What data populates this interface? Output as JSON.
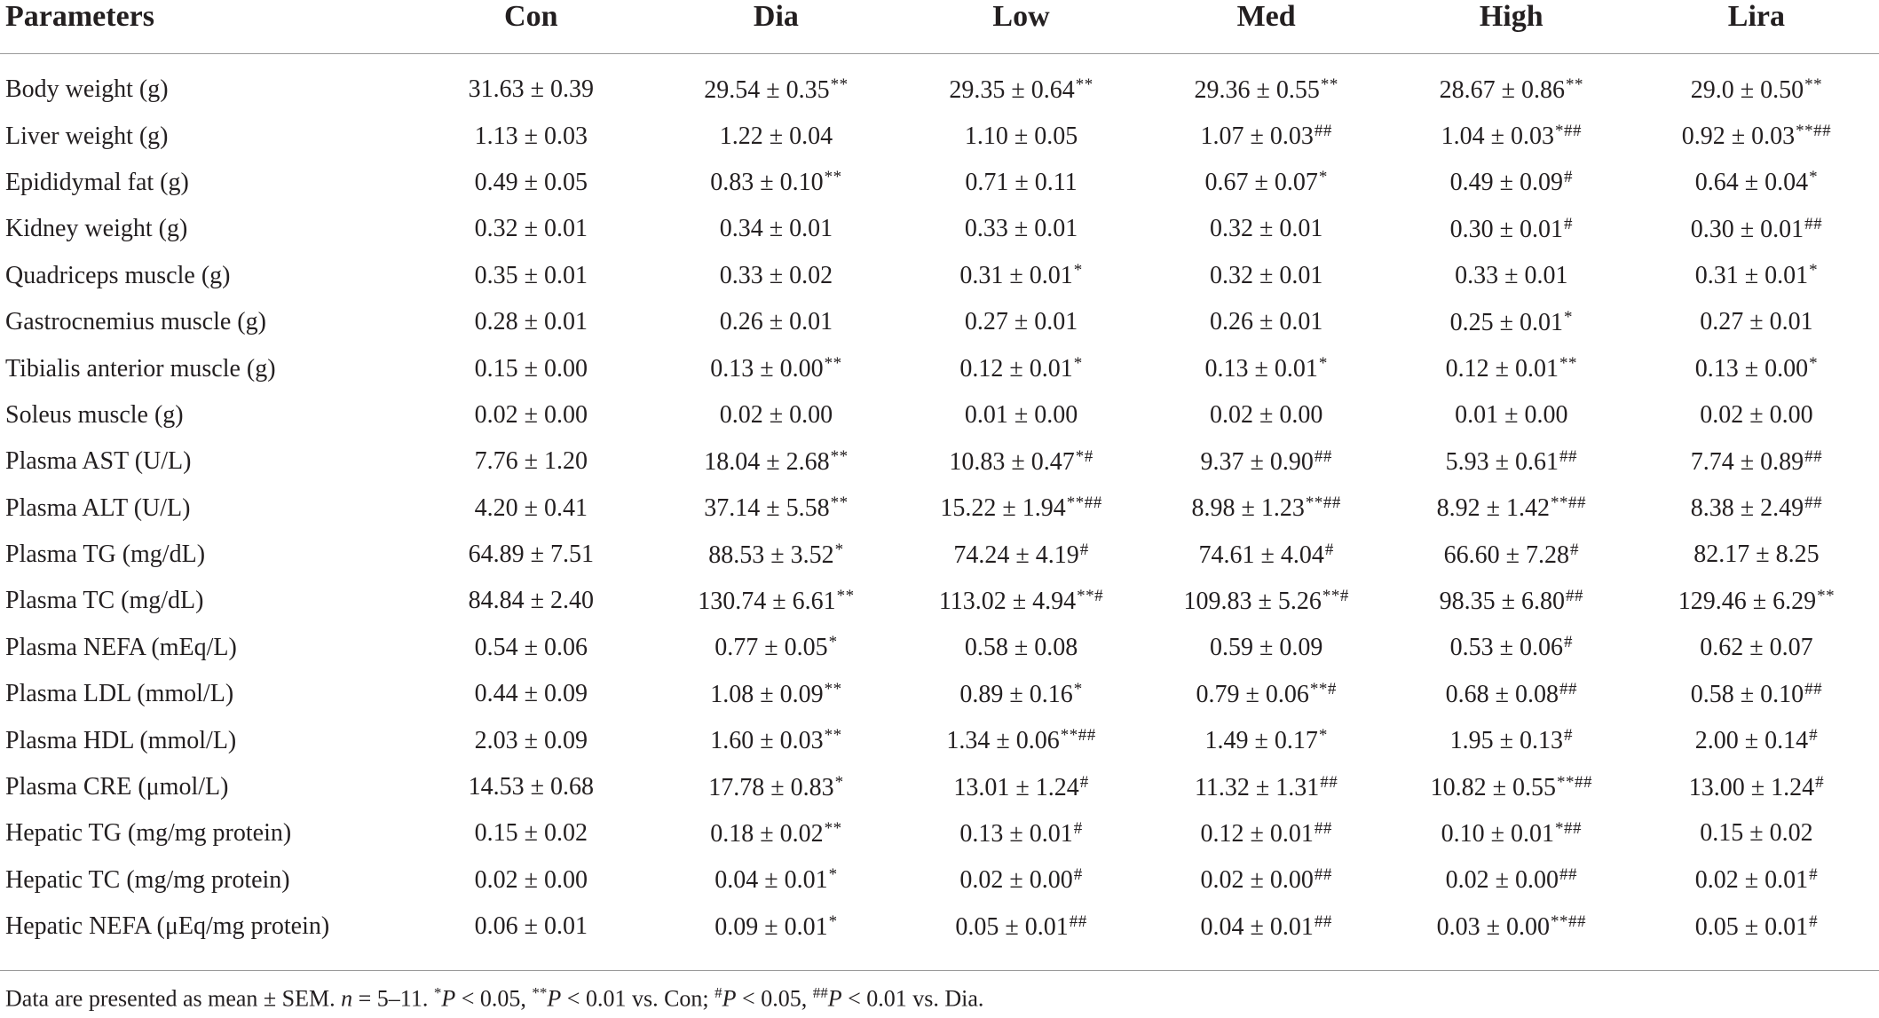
{
  "table": {
    "headers": [
      "Parameters",
      "Con",
      "Dia",
      "Low",
      "Med",
      "High",
      "Lira"
    ],
    "rows": [
      {
        "label": "Body weight (g)",
        "cells": [
          [
            "31.63 ± 0.39",
            ""
          ],
          [
            "29.54 ± 0.35",
            "**"
          ],
          [
            "29.35 ± 0.64",
            "**"
          ],
          [
            "29.36 ± 0.55",
            "**"
          ],
          [
            "28.67 ± 0.86",
            "**"
          ],
          [
            "29.0 ± 0.50",
            "**"
          ]
        ]
      },
      {
        "label": "Liver weight (g)",
        "cells": [
          [
            "1.13 ± 0.03",
            ""
          ],
          [
            "1.22 ± 0.04",
            ""
          ],
          [
            "1.10 ± 0.05",
            ""
          ],
          [
            "1.07 ± 0.03",
            "##"
          ],
          [
            "1.04 ± 0.03",
            "*##"
          ],
          [
            "0.92 ± 0.03",
            "**##"
          ]
        ]
      },
      {
        "label": "Epididymal fat (g)",
        "cells": [
          [
            "0.49 ± 0.05",
            ""
          ],
          [
            "0.83 ± 0.10",
            "**"
          ],
          [
            "0.71 ± 0.11",
            ""
          ],
          [
            "0.67 ± 0.07",
            "*"
          ],
          [
            "0.49 ± 0.09",
            "#"
          ],
          [
            "0.64 ± 0.04",
            "*"
          ]
        ]
      },
      {
        "label": "Kidney weight (g)",
        "cells": [
          [
            "0.32 ± 0.01",
            ""
          ],
          [
            "0.34 ± 0.01",
            ""
          ],
          [
            "0.33 ± 0.01",
            ""
          ],
          [
            "0.32 ± 0.01",
            ""
          ],
          [
            "0.30 ± 0.01",
            "#"
          ],
          [
            "0.30 ± 0.01",
            "##"
          ]
        ]
      },
      {
        "label": "Quadriceps muscle (g)",
        "cells": [
          [
            "0.35 ± 0.01",
            ""
          ],
          [
            "0.33 ± 0.02",
            ""
          ],
          [
            "0.31 ± 0.01",
            "*"
          ],
          [
            "0.32 ± 0.01",
            ""
          ],
          [
            "0.33 ± 0.01",
            ""
          ],
          [
            "0.31 ± 0.01",
            "*"
          ]
        ]
      },
      {
        "label": "Gastrocnemius muscle (g)",
        "cells": [
          [
            "0.28 ± 0.01",
            ""
          ],
          [
            "0.26 ± 0.01",
            ""
          ],
          [
            "0.27 ± 0.01",
            ""
          ],
          [
            "0.26 ± 0.01",
            ""
          ],
          [
            "0.25 ± 0.01",
            "*"
          ],
          [
            "0.27 ± 0.01",
            ""
          ]
        ]
      },
      {
        "label": "Tibialis anterior muscle (g)",
        "cells": [
          [
            "0.15 ± 0.00",
            ""
          ],
          [
            "0.13 ± 0.00",
            "**"
          ],
          [
            "0.12 ± 0.01",
            "*"
          ],
          [
            "0.13 ± 0.01",
            "*"
          ],
          [
            "0.12 ± 0.01",
            "**"
          ],
          [
            "0.13 ± 0.00",
            "*"
          ]
        ]
      },
      {
        "label": "Soleus muscle (g)",
        "cells": [
          [
            "0.02 ± 0.00",
            ""
          ],
          [
            "0.02 ± 0.00",
            ""
          ],
          [
            "0.01 ± 0.00",
            ""
          ],
          [
            "0.02 ± 0.00",
            ""
          ],
          [
            "0.01 ± 0.00",
            ""
          ],
          [
            "0.02 ± 0.00",
            ""
          ]
        ]
      },
      {
        "label": "Plasma AST (U/L)",
        "cells": [
          [
            "7.76 ± 1.20",
            ""
          ],
          [
            "18.04 ± 2.68",
            "**"
          ],
          [
            "10.83 ± 0.47",
            "*#"
          ],
          [
            "9.37 ± 0.90",
            "##"
          ],
          [
            "5.93 ± 0.61",
            "##"
          ],
          [
            "7.74 ± 0.89",
            "##"
          ]
        ]
      },
      {
        "label": "Plasma ALT (U/L)",
        "cells": [
          [
            "4.20 ± 0.41",
            ""
          ],
          [
            "37.14 ± 5.58",
            "**"
          ],
          [
            "15.22 ± 1.94",
            "**##"
          ],
          [
            "8.98 ± 1.23",
            "**##"
          ],
          [
            "8.92 ± 1.42",
            "**##"
          ],
          [
            "8.38 ± 2.49",
            "##"
          ]
        ]
      },
      {
        "label": "Plasma TG (mg/dL)",
        "cells": [
          [
            "64.89 ± 7.51",
            ""
          ],
          [
            "88.53 ± 3.52",
            "*"
          ],
          [
            "74.24 ± 4.19",
            "#"
          ],
          [
            "74.61 ± 4.04",
            "#"
          ],
          [
            "66.60 ± 7.28",
            "#"
          ],
          [
            "82.17 ± 8.25",
            ""
          ]
        ]
      },
      {
        "label": "Plasma TC (mg/dL)",
        "cells": [
          [
            "84.84 ± 2.40",
            ""
          ],
          [
            "130.74 ± 6.61",
            "**"
          ],
          [
            "113.02 ± 4.94",
            "**#"
          ],
          [
            "109.83 ± 5.26",
            "**#"
          ],
          [
            "98.35 ± 6.80",
            "##"
          ],
          [
            "129.46 ± 6.29",
            "**"
          ]
        ]
      },
      {
        "label": "Plasma NEFA (mEq/L)",
        "cells": [
          [
            "0.54 ± 0.06",
            ""
          ],
          [
            "0.77 ± 0.05",
            "*"
          ],
          [
            "0.58 ± 0.08",
            ""
          ],
          [
            "0.59 ± 0.09",
            ""
          ],
          [
            "0.53 ± 0.06",
            "#"
          ],
          [
            "0.62 ± 0.07",
            ""
          ]
        ]
      },
      {
        "label": "Plasma LDL (mmol/L)",
        "cells": [
          [
            "0.44 ± 0.09",
            ""
          ],
          [
            "1.08 ± 0.09",
            "**"
          ],
          [
            "0.89 ± 0.16",
            "*"
          ],
          [
            "0.79 ± 0.06",
            "**#"
          ],
          [
            "0.68 ± 0.08",
            "##"
          ],
          [
            "0.58 ± 0.10",
            "##"
          ]
        ]
      },
      {
        "label": "Plasma HDL (mmol/L)",
        "cells": [
          [
            "2.03 ± 0.09",
            ""
          ],
          [
            "1.60 ± 0.03",
            "**"
          ],
          [
            "1.34 ± 0.06",
            "**##"
          ],
          [
            "1.49 ± 0.17",
            "*"
          ],
          [
            "1.95 ± 0.13",
            "#"
          ],
          [
            "2.00 ± 0.14",
            "#"
          ]
        ]
      },
      {
        "label": "Plasma CRE (μmol/L)",
        "cells": [
          [
            "14.53 ± 0.68",
            ""
          ],
          [
            "17.78 ± 0.83",
            "*"
          ],
          [
            "13.01 ± 1.24",
            "#"
          ],
          [
            "11.32 ± 1.31",
            "##"
          ],
          [
            "10.82 ± 0.55",
            "**##"
          ],
          [
            "13.00 ± 1.24",
            "#"
          ]
        ]
      },
      {
        "label": "Hepatic TG (mg/mg protein)",
        "cells": [
          [
            "0.15 ± 0.02",
            ""
          ],
          [
            "0.18 ± 0.02",
            "**"
          ],
          [
            "0.13 ± 0.01",
            "#"
          ],
          [
            "0.12 ± 0.01",
            "##"
          ],
          [
            "0.10 ± 0.01",
            "*##"
          ],
          [
            "0.15 ± 0.02",
            ""
          ]
        ]
      },
      {
        "label": "Hepatic TC (mg/mg protein)",
        "cells": [
          [
            "0.02 ± 0.00",
            ""
          ],
          [
            "0.04 ± 0.01",
            "*"
          ],
          [
            "0.02 ± 0.00",
            "#"
          ],
          [
            "0.02 ± 0.00",
            "##"
          ],
          [
            "0.02 ± 0.00",
            "##"
          ],
          [
            "0.02 ± 0.01",
            "#"
          ]
        ]
      },
      {
        "label": "Hepatic NEFA (μEq/mg protein)",
        "cells": [
          [
            "0.06 ± 0.01",
            ""
          ],
          [
            "0.09 ± 0.01",
            "*"
          ],
          [
            "0.05 ± 0.01",
            "##"
          ],
          [
            "0.04 ± 0.01",
            "##"
          ],
          [
            "0.03 ± 0.00",
            "**##"
          ],
          [
            "0.05 ± 0.01",
            "#"
          ]
        ]
      }
    ]
  },
  "footnote": {
    "t1": "Data are presented as mean ± SEM. ",
    "n": "n",
    "t2": " = 5–11. ",
    "s1": "*",
    "p1": "P",
    "t3": " < 0.05, ",
    "s2": "**",
    "p2": "P",
    "t4": " < 0.01 vs. Con; ",
    "s3": "#",
    "p3": "P",
    "t5": " < 0.05, ",
    "s4": "##",
    "p4": "P",
    "t6": " < 0.01 vs. Dia."
  }
}
